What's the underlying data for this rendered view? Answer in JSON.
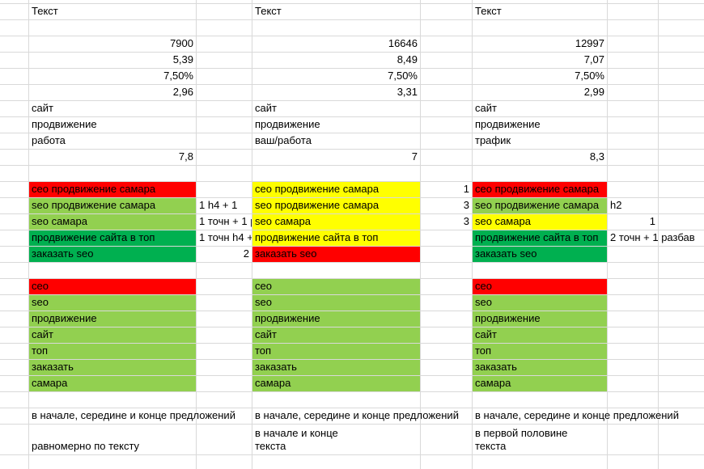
{
  "rows": [
    [
      [
        "Текст"
      ],
      null,
      [
        "Текст"
      ],
      null,
      [
        "Текст"
      ]
    ],
    [],
    [
      [
        "7900"
      ],
      null,
      [
        "16646"
      ],
      null,
      [
        "12997"
      ]
    ],
    [
      [
        "5,39"
      ],
      null,
      [
        "8,49"
      ],
      null,
      [
        "7,07"
      ]
    ],
    [
      [
        "7,50%"
      ],
      null,
      [
        "7,50%"
      ],
      null,
      [
        "7,50%"
      ]
    ],
    [
      [
        "2,96"
      ],
      null,
      [
        "3,31"
      ],
      null,
      [
        "2,99"
      ]
    ],
    [
      [
        "сайт"
      ],
      null,
      [
        "сайт"
      ],
      null,
      [
        "сайт"
      ]
    ],
    [
      [
        "продвижение"
      ],
      null,
      [
        "продвижение"
      ],
      null,
      [
        "продвижение"
      ]
    ],
    [
      [
        "работа"
      ],
      null,
      [
        "ваш/работа"
      ],
      null,
      [
        "трафик"
      ]
    ],
    [
      [
        "7,8"
      ],
      null,
      [
        "7"
      ],
      null,
      [
        "8,3"
      ]
    ],
    [],
    [
      [
        "сео продвижение самара",
        "#ff0000"
      ],
      null,
      [
        "сео продвижение самара",
        "#ffff00"
      ],
      [
        "1"
      ],
      [
        "сео продвижение самара",
        "#ff0000"
      ]
    ],
    [
      [
        "seo продвижение самара",
        "#92d050"
      ],
      [
        "1 h4 + 1"
      ],
      [
        "seo продвижение самара",
        "#ffff00"
      ],
      [
        "3"
      ],
      [
        "seo продвижение самара",
        "#92d050"
      ],
      [
        "h2"
      ]
    ],
    [
      [
        "seo самара",
        "#92d050"
      ],
      [
        "1 точн + 1 р"
      ],
      [
        "seo самара",
        "#ffff00"
      ],
      [
        "3"
      ],
      [
        "seo самара",
        "#ffff00"
      ],
      [
        "1"
      ]
    ],
    [
      [
        "продвижение сайта в топ",
        "#00b050"
      ],
      [
        "1 точн h4 +"
      ],
      [
        "продвижение сайта в топ",
        "#ffff00"
      ],
      null,
      [
        "продвижение сайта в топ",
        "#00b050"
      ],
      [
        "2 точн + 1 разбав"
      ]
    ],
    [
      [
        "заказать seo",
        "#00b050"
      ],
      [
        "2"
      ],
      [
        "заказать seo",
        "#ff0000"
      ],
      null,
      [
        "заказать seo",
        "#00b050"
      ]
    ],
    [],
    [
      [
        "сео",
        "#ff0000"
      ],
      null,
      [
        "сео",
        "#92d050"
      ],
      null,
      [
        "сео",
        "#ff0000"
      ]
    ],
    [
      [
        "seo",
        "#92d050"
      ],
      null,
      [
        "seo",
        "#92d050"
      ],
      null,
      [
        "seo",
        "#92d050"
      ]
    ],
    [
      [
        "продвижение",
        "#92d050"
      ],
      null,
      [
        "продвижение",
        "#92d050"
      ],
      null,
      [
        "продвижение",
        "#92d050"
      ]
    ],
    [
      [
        "сайт",
        "#92d050"
      ],
      null,
      [
        "сайт",
        "#92d050"
      ],
      null,
      [
        "сайт",
        "#92d050"
      ]
    ],
    [
      [
        "топ",
        "#92d050"
      ],
      null,
      [
        "топ",
        "#92d050"
      ],
      null,
      [
        "топ",
        "#92d050"
      ]
    ],
    [
      [
        "заказать",
        "#92d050"
      ],
      null,
      [
        "заказать",
        "#92d050"
      ],
      null,
      [
        "заказать",
        "#92d050"
      ]
    ],
    [
      [
        "самара",
        "#92d050"
      ],
      null,
      [
        "самара",
        "#92d050"
      ],
      null,
      [
        "самара",
        "#92d050"
      ]
    ],
    [],
    [
      [
        "в начале, середине и конце предложений"
      ],
      null,
      [
        "в начале, середине и конце предложений"
      ],
      null,
      [
        "в начале, середине и конце предложений"
      ]
    ],
    [
      [
        "равномерно по тексту"
      ],
      null,
      [
        "в начале и конце текста"
      ],
      null,
      [
        "в первой половине текста"
      ]
    ]
  ]
}
